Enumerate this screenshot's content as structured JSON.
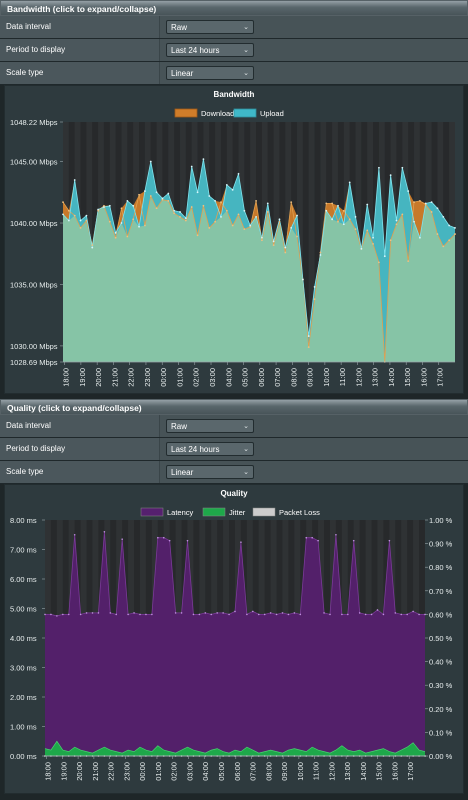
{
  "bandwidth_section": {
    "header": "Bandwidth (click to expand/collapse)",
    "rows": [
      {
        "label": "Data interval",
        "value": "Raw"
      },
      {
        "label": "Period to display",
        "value": "Last 24 hours"
      },
      {
        "label": "Scale type",
        "value": "Linear"
      }
    ]
  },
  "quality_section": {
    "header": "Quality (click to expand/collapse)",
    "rows": [
      {
        "label": "Data interval",
        "value": "Raw"
      },
      {
        "label": "Period to display",
        "value": "Last 24 hours"
      },
      {
        "label": "Scale type",
        "value": "Linear"
      }
    ]
  },
  "colors": {
    "download": "#d07d2a",
    "upload": "#3fb8c8",
    "overlap": "#86c4a6",
    "latency": "#55206e",
    "jitter": "#1ea84a",
    "packet_loss": "#cccccc"
  },
  "chart_data": [
    {
      "type": "area",
      "title": "Bandwidth",
      "legend": [
        "Download",
        "Upload"
      ],
      "legend_position": "top",
      "ylim": [
        1028.69,
        1048.22
      ],
      "yticks": [
        "1048.22 Mbps",
        "1045.00 Mbps",
        "1040.00 Mbps",
        "1035.00 Mbps",
        "1030.00 Mbps",
        "1028.69 Mbps"
      ],
      "ytick_values": [
        1048.22,
        1045.0,
        1040.0,
        1035.0,
        1030.0,
        1028.69
      ],
      "xticks": [
        "18:00",
        "19:00",
        "20:00",
        "21:00",
        "22:00",
        "23:00",
        "00:00",
        "01:00",
        "02:00",
        "03:00",
        "04:00",
        "05:00",
        "06:00",
        "07:00",
        "08:00",
        "09:00",
        "10:00",
        "11:00",
        "12:00",
        "13:00",
        "14:00",
        "15:00",
        "16:00",
        "17:00"
      ],
      "x_range": [
        -0.1,
        24.0
      ],
      "series": [
        {
          "name": "Download",
          "values": [
            1041.7,
            1041.0,
            1040.6,
            1039.6,
            1040.2,
            1038.2,
            1041.0,
            1041.4,
            1040.1,
            1038.8,
            1041.2,
            1038.9,
            1040.3,
            1042.3,
            1039.8,
            1042.2,
            1041.2,
            1041.9,
            1041.8,
            1040.8,
            1040.5,
            1040.2,
            1041.3,
            1039.0,
            1041.4,
            1039.6,
            1040.1,
            1041.7,
            1041.0,
            1039.8,
            1040.7,
            1039.5,
            1039.7,
            1041.8,
            1038.6,
            1040.9,
            1038.2,
            1040.1,
            1037.6,
            1041.7,
            1038.9,
            1035.4,
            1029.9,
            1033.8,
            1037.6,
            1041.6,
            1041.6,
            1040.1,
            1041.0,
            1040.3,
            1039.5,
            1037.9,
            1039.4,
            1038.3,
            1036.8,
            1028.7,
            1038.6,
            1039.9,
            1040.7,
            1036.9,
            1041.7,
            1041.8,
            1041.5,
            1040.9,
            1039.1,
            1038.1,
            1038.6,
            1039.1
          ]
        },
        {
          "name": "Upload",
          "values": [
            1040.7,
            1040.2,
            1043.5,
            1040.2,
            1040.6,
            1038.0,
            1041.1,
            1041.3,
            1041.4,
            1039.2,
            1040.0,
            1041.8,
            1041.4,
            1039.7,
            1042.6,
            1045.0,
            1042.5,
            1042.0,
            1042.4,
            1041.0,
            1040.9,
            1040.4,
            1044.6,
            1042.5,
            1045.2,
            1042.2,
            1041.8,
            1040.5,
            1043.1,
            1042.7,
            1044.0,
            1041.0,
            1039.8,
            1040.5,
            1038.8,
            1041.6,
            1038.5,
            1040.3,
            1038.0,
            1039.6,
            1040.6,
            1035.4,
            1030.8,
            1034.8,
            1037.4,
            1041.0,
            1040.3,
            1041.4,
            1039.9,
            1043.3,
            1040.5,
            1037.9,
            1041.5,
            1038.8,
            1044.5,
            1037.3,
            1043.9,
            1040.2,
            1044.5,
            1042.6,
            1040.1,
            1038.8,
            1041.6,
            1041.7,
            1041.2,
            1040.5,
            1039.8,
            1039.6
          ]
        }
      ]
    },
    {
      "type": "area",
      "title": "Quality",
      "legend": [
        "Latency",
        "Jitter",
        "Packet Loss"
      ],
      "legend_position": "top",
      "ylim_left": [
        0,
        8
      ],
      "ylim_right": [
        0,
        1
      ],
      "yticks_left": [
        "8.00 ms",
        "7.00 ms",
        "6.00 ms",
        "5.00 ms",
        "4.00 ms",
        "3.00 ms",
        "2.00 ms",
        "1.00 ms",
        "0.00 ms"
      ],
      "yticks_right": [
        "1.00 %",
        "0.90 %",
        "0.80 %",
        "0.70 %",
        "0.60 %",
        "0.50 %",
        "0.40 %",
        "0.30 %",
        "0.20 %",
        "0.10 %",
        "0.00 %"
      ],
      "xticks": [
        "18:00",
        "19:00",
        "20:00",
        "21:00",
        "22:00",
        "23:00",
        "00:00",
        "01:00",
        "02:00",
        "03:00",
        "04:00",
        "05:00",
        "06:00",
        "07:00",
        "08:00",
        "09:00",
        "10:00",
        "11:00",
        "12:00",
        "13:00",
        "14:00",
        "15:00",
        "16:00",
        "17:00"
      ],
      "x_range": [
        -0.1,
        24.0
      ],
      "series": [
        {
          "name": "Latency",
          "axis": "left",
          "values": [
            4.8,
            4.8,
            4.75,
            4.8,
            4.8,
            7.5,
            4.8,
            4.85,
            4.85,
            4.85,
            7.6,
            4.85,
            4.8,
            7.35,
            4.8,
            4.85,
            4.8,
            4.8,
            4.8,
            7.4,
            7.4,
            7.3,
            4.85,
            4.85,
            7.3,
            4.8,
            4.8,
            4.85,
            4.8,
            4.85,
            4.85,
            4.8,
            4.9,
            7.25,
            4.8,
            4.9,
            4.8,
            4.8,
            4.85,
            4.8,
            4.85,
            4.8,
            4.85,
            4.8,
            7.4,
            7.4,
            7.3,
            4.85,
            4.8,
            7.5,
            4.8,
            4.8,
            7.3,
            4.85,
            4.8,
            4.8,
            4.95,
            4.8,
            7.3,
            4.85,
            4.8,
            4.8,
            4.9,
            4.8,
            4.8
          ]
        },
        {
          "name": "Jitter",
          "axis": "left",
          "values": [
            0.25,
            0.2,
            0.5,
            0.2,
            0.15,
            0.3,
            0.2,
            0.15,
            0.1,
            0.2,
            0.3,
            0.2,
            0.15,
            0.1,
            0.2,
            0.15,
            0.3,
            0.2,
            0.15,
            0.35,
            0.2,
            0.15,
            0.1,
            0.2,
            0.3,
            0.2,
            0.15,
            0.1,
            0.2,
            0.25,
            0.15,
            0.1,
            0.2,
            0.15,
            0.3,
            0.2,
            0.1,
            0.15,
            0.2,
            0.15,
            0.1,
            0.2,
            0.25,
            0.2,
            0.15,
            0.3,
            0.2,
            0.15,
            0.1,
            0.2,
            0.35,
            0.2,
            0.15,
            0.2,
            0.1,
            0.15,
            0.2,
            0.25,
            0.15,
            0.1,
            0.2,
            0.3,
            0.45,
            0.2,
            0.15
          ]
        },
        {
          "name": "Packet Loss",
          "axis": "right",
          "values": [
            0,
            0,
            0,
            0,
            0,
            0,
            0,
            0,
            0,
            0,
            0,
            0,
            0,
            0,
            0,
            0,
            0,
            0,
            0,
            0,
            0,
            0,
            0,
            0,
            0,
            0,
            0,
            0,
            0,
            0,
            0,
            0,
            0,
            0,
            0,
            0,
            0,
            0,
            0,
            0,
            0,
            0,
            0,
            0,
            0,
            0,
            0,
            0,
            0,
            0,
            0,
            0,
            0,
            0,
            0,
            0,
            0,
            0,
            0,
            0,
            0,
            0,
            0,
            0,
            0
          ]
        }
      ]
    }
  ]
}
